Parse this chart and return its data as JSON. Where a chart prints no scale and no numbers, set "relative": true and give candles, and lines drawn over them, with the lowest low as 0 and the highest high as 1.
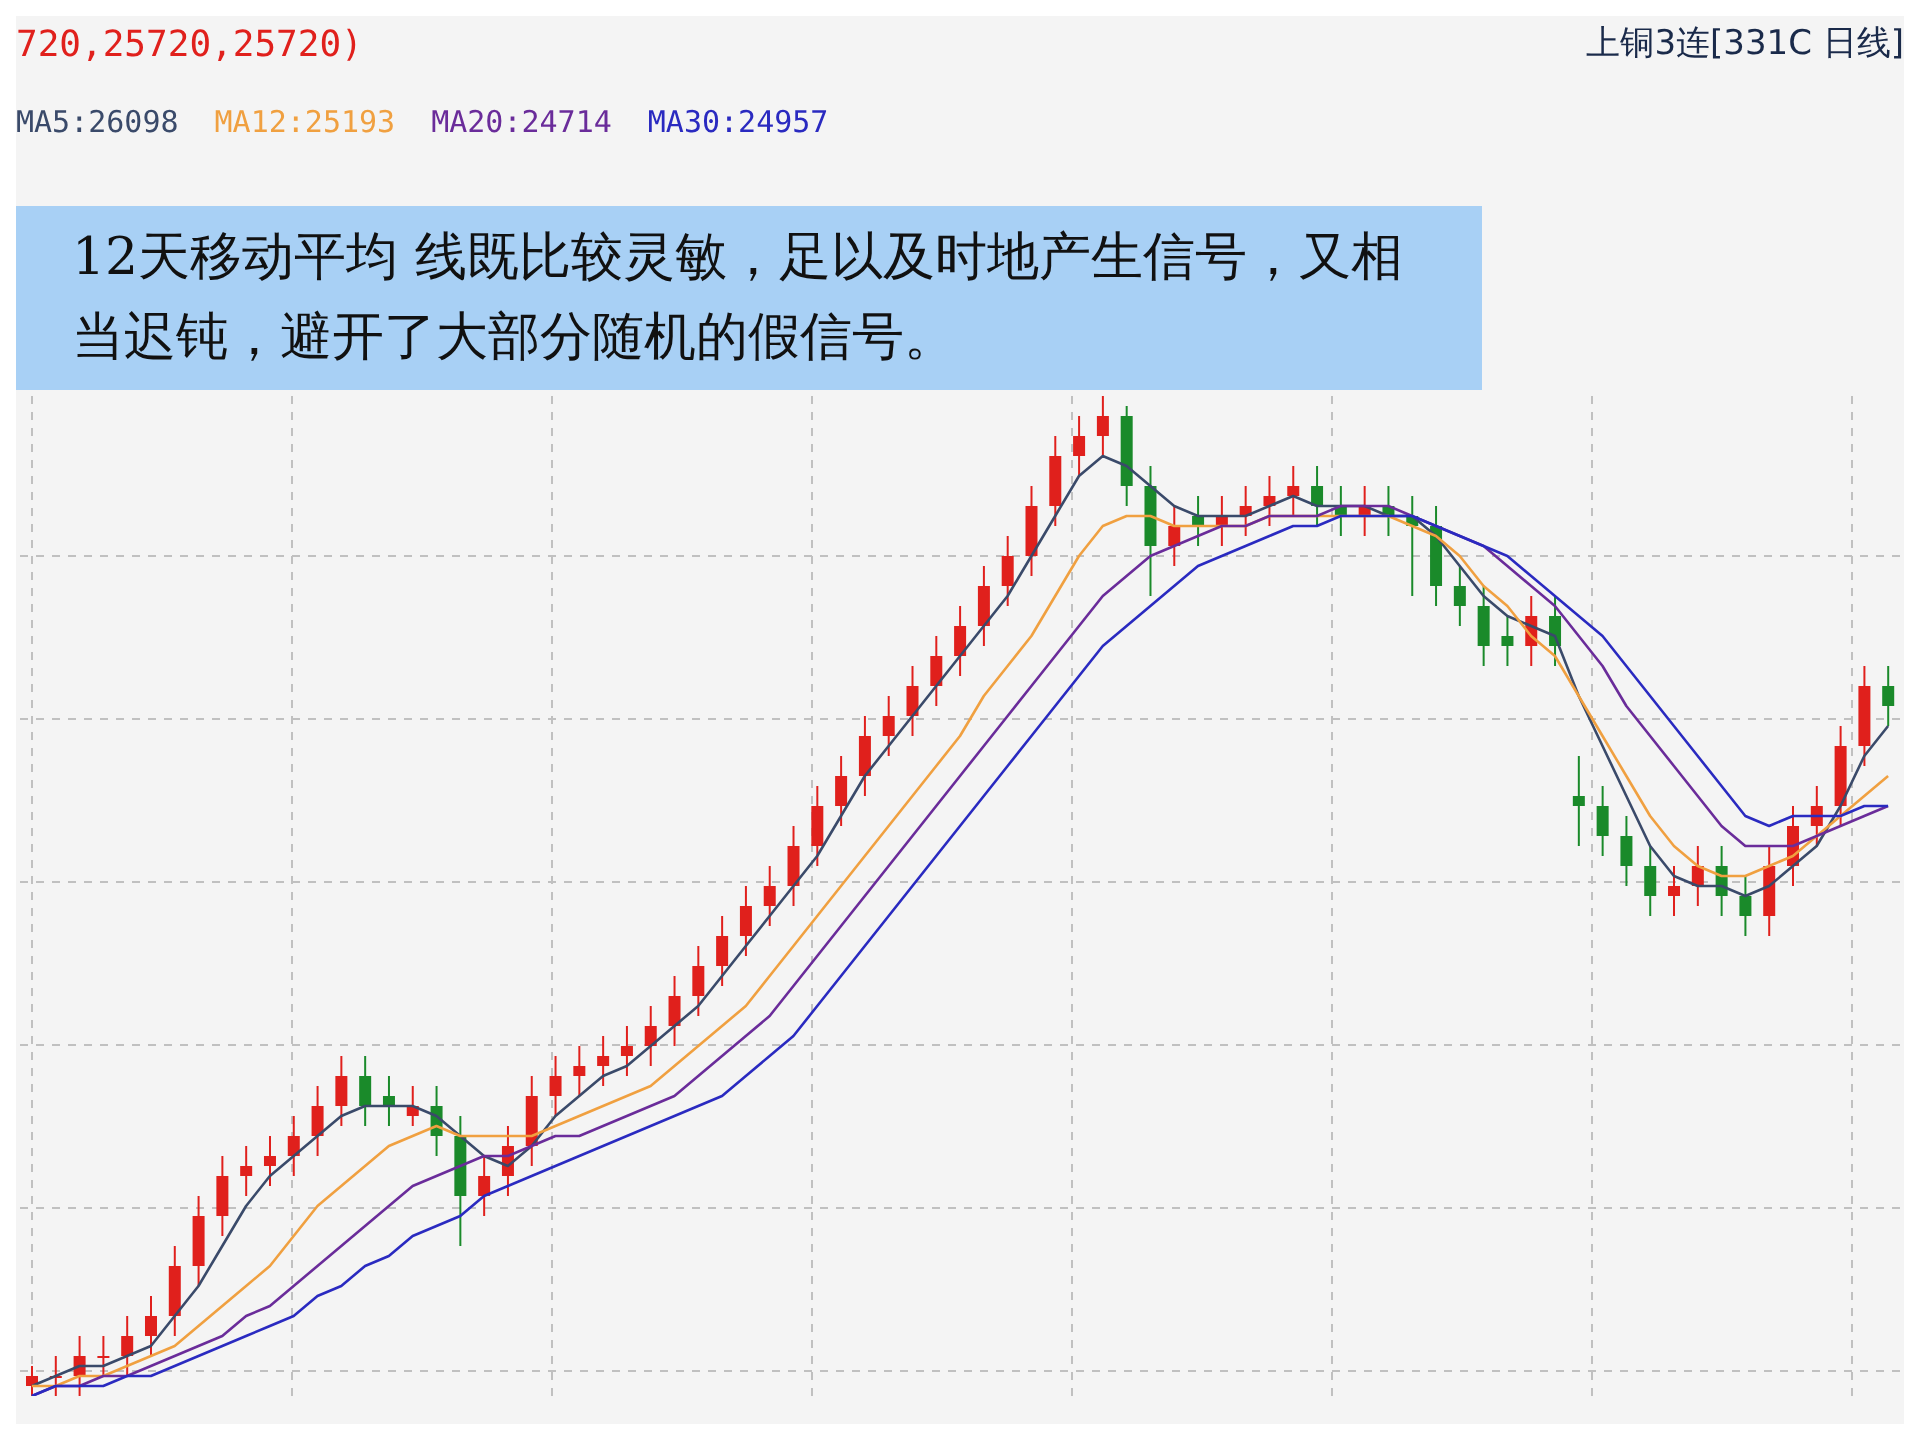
{
  "chart_data": {
    "type": "candlestick",
    "relative": true,
    "grid": true,
    "legend": "top left",
    "annotations": [
      "720,25720,25720)",
      "上铜3连[331C 日线]",
      "12天移动平均 线既比较灵敏，足以及时地产生信号，又相当迟钝，避开了大部分随机的假信号。"
    ],
    "categories": [
      null,
      null,
      null,
      null,
      null,
      null,
      null,
      null,
      null,
      null,
      null,
      null,
      null,
      null,
      null,
      null,
      null,
      null,
      null,
      null,
      null,
      null,
      null,
      null,
      null,
      null,
      null,
      null,
      null,
      null,
      null,
      null,
      null,
      null,
      null,
      null,
      null,
      null,
      null,
      null,
      null,
      null,
      null,
      null,
      null,
      null,
      null,
      null,
      null,
      null,
      null,
      null,
      null,
      null,
      null,
      null,
      null,
      null,
      null,
      null,
      null,
      null,
      null,
      null,
      null,
      null,
      null,
      null,
      null,
      null,
      null,
      null,
      null,
      null,
      null,
      null,
      null,
      null,
      null
    ],
    "ohlc": [
      [
        0.01,
        0.03,
        0,
        0.02
      ],
      [
        0.02,
        0.04,
        0,
        0.02
      ],
      [
        0.02,
        0.06,
        0,
        0.04
      ],
      [
        0.04,
        0.06,
        0.02,
        0.04
      ],
      [
        0.04,
        0.08,
        0.02,
        0.06
      ],
      [
        0.06,
        0.1,
        0.04,
        0.08
      ],
      [
        0.08,
        0.15,
        0.06,
        0.13
      ],
      [
        0.13,
        0.2,
        0.11,
        0.18
      ],
      [
        0.18,
        0.24,
        0.16,
        0.22
      ],
      [
        0.22,
        0.25,
        0.2,
        0.23
      ],
      [
        0.23,
        0.26,
        0.21,
        0.24
      ],
      [
        0.24,
        0.28,
        0.22,
        0.26
      ],
      [
        0.26,
        0.31,
        0.24,
        0.29
      ],
      [
        0.29,
        0.34,
        0.27,
        0.32
      ],
      [
        0.32,
        0.34,
        0.27,
        0.29
      ],
      [
        0.3,
        0.32,
        0.27,
        0.29
      ],
      [
        0.28,
        0.31,
        0.27,
        0.29
      ],
      [
        0.29,
        0.31,
        0.24,
        0.26
      ],
      [
        0.26,
        0.28,
        0.15,
        0.2
      ],
      [
        0.2,
        0.24,
        0.18,
        0.22
      ],
      [
        0.22,
        0.27,
        0.2,
        0.25
      ],
      [
        0.25,
        0.32,
        0.23,
        0.3
      ],
      [
        0.3,
        0.34,
        0.28,
        0.32
      ],
      [
        0.32,
        0.35,
        0.3,
        0.33
      ],
      [
        0.33,
        0.36,
        0.31,
        0.34
      ],
      [
        0.34,
        0.37,
        0.32,
        0.35
      ],
      [
        0.35,
        0.39,
        0.33,
        0.37
      ],
      [
        0.37,
        0.42,
        0.35,
        0.4
      ],
      [
        0.4,
        0.45,
        0.38,
        0.43
      ],
      [
        0.43,
        0.48,
        0.41,
        0.46
      ],
      [
        0.46,
        0.51,
        0.44,
        0.49
      ],
      [
        0.49,
        0.53,
        0.47,
        0.51
      ],
      [
        0.51,
        0.57,
        0.49,
        0.55
      ],
      [
        0.55,
        0.61,
        0.53,
        0.59
      ],
      [
        0.59,
        0.64,
        0.57,
        0.62
      ],
      [
        0.62,
        0.68,
        0.6,
        0.66
      ],
      [
        0.66,
        0.7,
        0.64,
        0.68
      ],
      [
        0.68,
        0.73,
        0.66,
        0.71
      ],
      [
        0.71,
        0.76,
        0.69,
        0.74
      ],
      [
        0.74,
        0.79,
        0.72,
        0.77
      ],
      [
        0.77,
        0.83,
        0.75,
        0.81
      ],
      [
        0.81,
        0.86,
        0.79,
        0.84
      ],
      [
        0.84,
        0.91,
        0.82,
        0.89
      ],
      [
        0.89,
        0.96,
        0.87,
        0.94
      ],
      [
        0.94,
        0.98,
        0.92,
        0.96
      ],
      [
        0.96,
        1,
        0.94,
        0.98
      ],
      [
        0.98,
        0.99,
        0.89,
        0.91
      ],
      [
        0.91,
        0.93,
        0.8,
        0.85
      ],
      [
        0.85,
        0.89,
        0.83,
        0.87
      ],
      [
        0.88,
        0.9,
        0.85,
        0.87
      ],
      [
        0.87,
        0.9,
        0.85,
        0.88
      ],
      [
        0.88,
        0.91,
        0.86,
        0.89
      ],
      [
        0.89,
        0.92,
        0.87,
        0.9
      ],
      [
        0.9,
        0.93,
        0.88,
        0.91
      ],
      [
        0.91,
        0.93,
        0.87,
        0.89
      ],
      [
        0.89,
        0.91,
        0.86,
        0.88
      ],
      [
        0.88,
        0.91,
        0.86,
        0.89
      ],
      [
        0.89,
        0.91,
        0.86,
        0.88
      ],
      [
        0.88,
        0.9,
        0.8,
        0.87
      ],
      [
        0.87,
        0.89,
        0.79,
        0.81
      ],
      [
        0.81,
        0.83,
        0.77,
        0.79
      ],
      [
        0.79,
        0.81,
        0.73,
        0.75
      ],
      [
        0.76,
        0.78,
        0.73,
        0.75
      ],
      [
        0.75,
        0.8,
        0.73,
        0.78
      ],
      [
        0.78,
        0.8,
        0.73,
        0.75
      ],
      [
        0.6,
        0.64,
        0.55,
        0.59
      ],
      [
        0.59,
        0.61,
        0.54,
        0.56
      ],
      [
        0.56,
        0.58,
        0.51,
        0.53
      ],
      [
        0.53,
        0.55,
        0.48,
        0.5
      ],
      [
        0.5,
        0.53,
        0.48,
        0.51
      ],
      [
        0.51,
        0.55,
        0.49,
        0.53
      ],
      [
        0.53,
        0.55,
        0.48,
        0.5
      ],
      [
        0.5,
        0.52,
        0.46,
        0.48
      ],
      [
        0.48,
        0.55,
        0.46,
        0.53
      ],
      [
        0.53,
        0.59,
        0.51,
        0.57
      ],
      [
        0.57,
        0.61,
        0.55,
        0.59
      ],
      [
        0.59,
        0.67,
        0.57,
        0.65
      ],
      [
        0.65,
        0.73,
        0.63,
        0.71
      ],
      [
        0.71,
        0.73,
        0.67,
        0.69
      ]
    ],
    "colors": [
      "#e0201c",
      "#e0201c",
      "#e0201c",
      "#e0201c",
      "#e0201c",
      "#e0201c",
      "#e0201c",
      "#e0201c",
      "#e0201c",
      "#e0201c",
      "#e0201c",
      "#e0201c",
      "#e0201c",
      "#e0201c",
      "#1a8a2a",
      "#1a8a2a",
      "#e0201c",
      "#1a8a2a",
      "#1a8a2a",
      "#e0201c",
      "#e0201c",
      "#e0201c",
      "#e0201c",
      "#e0201c",
      "#e0201c",
      "#e0201c",
      "#e0201c",
      "#e0201c",
      "#e0201c",
      "#e0201c",
      "#e0201c",
      "#e0201c",
      "#e0201c",
      "#e0201c",
      "#e0201c",
      "#e0201c",
      "#e0201c",
      "#e0201c",
      "#e0201c",
      "#e0201c",
      "#e0201c",
      "#e0201c",
      "#e0201c",
      "#e0201c",
      "#e0201c",
      "#e0201c",
      "#1a8a2a",
      "#1a8a2a",
      "#e0201c",
      "#1a8a2a",
      "#e0201c",
      "#e0201c",
      "#e0201c",
      "#e0201c",
      "#1a8a2a",
      "#1a8a2a",
      "#e0201c",
      "#1a8a2a",
      "#1a8a2a",
      "#1a8a2a",
      "#1a8a2a",
      "#1a8a2a",
      "#1a8a2a",
      "#e0201c",
      "#1a8a2a",
      "#1a8a2a",
      "#1a8a2a",
      "#1a8a2a",
      "#1a8a2a",
      "#e0201c",
      "#e0201c",
      "#1a8a2a",
      "#1a8a2a",
      "#e0201c",
      "#e0201c",
      "#e0201c",
      "#e0201c",
      "#e0201c",
      "#1a8a2a"
    ],
    "series": [
      {
        "name": "MA5:26098",
        "type": "line",
        "color": "#3a4a6a",
        "values": [
          0.01,
          0.02,
          0.03,
          0.03,
          0.04,
          0.05,
          0.08,
          0.11,
          0.15,
          0.19,
          0.22,
          0.24,
          0.26,
          0.28,
          0.29,
          0.29,
          0.29,
          0.28,
          0.26,
          0.24,
          0.23,
          0.25,
          0.28,
          0.3,
          0.32,
          0.33,
          0.35,
          0.37,
          0.39,
          0.42,
          0.45,
          0.48,
          0.51,
          0.54,
          0.58,
          0.62,
          0.65,
          0.68,
          0.71,
          0.74,
          0.77,
          0.8,
          0.84,
          0.88,
          0.92,
          0.94,
          0.93,
          0.91,
          0.89,
          0.88,
          0.88,
          0.88,
          0.89,
          0.9,
          0.89,
          0.89,
          0.89,
          0.88,
          0.88,
          0.86,
          0.83,
          0.8,
          0.78,
          0.77,
          0.76,
          0.7,
          0.65,
          0.6,
          0.55,
          0.52,
          0.51,
          0.51,
          0.5,
          0.51,
          0.53,
          0.55,
          0.59,
          0.64,
          0.67
        ]
      },
      {
        "name": "MA12:25193",
        "type": "line",
        "color": "#f0a040",
        "values": [
          0.01,
          0.01,
          0.02,
          0.02,
          0.03,
          0.04,
          0.05,
          0.07,
          0.09,
          0.11,
          0.13,
          0.16,
          0.19,
          0.21,
          0.23,
          0.25,
          0.26,
          0.27,
          0.26,
          0.26,
          0.26,
          0.26,
          0.27,
          0.28,
          0.29,
          0.3,
          0.31,
          0.33,
          0.35,
          0.37,
          0.39,
          0.42,
          0.45,
          0.48,
          0.51,
          0.54,
          0.57,
          0.6,
          0.63,
          0.66,
          0.7,
          0.73,
          0.76,
          0.8,
          0.84,
          0.87,
          0.88,
          0.88,
          0.87,
          0.87,
          0.87,
          0.87,
          0.88,
          0.88,
          0.88,
          0.88,
          0.88,
          0.88,
          0.87,
          0.86,
          0.84,
          0.81,
          0.79,
          0.76,
          0.74,
          0.7,
          0.66,
          0.62,
          0.58,
          0.55,
          0.53,
          0.52,
          0.52,
          0.53,
          0.54,
          0.56,
          0.58,
          0.6,
          0.62
        ]
      },
      {
        "name": "MA20:24714",
        "type": "line",
        "color": "#6a2c9a",
        "values": [
          0.0,
          0.01,
          0.01,
          0.02,
          0.02,
          0.03,
          0.04,
          0.05,
          0.06,
          0.08,
          0.09,
          0.11,
          0.13,
          0.15,
          0.17,
          0.19,
          0.21,
          0.22,
          0.23,
          0.24,
          0.24,
          0.25,
          0.26,
          0.26,
          0.27,
          0.28,
          0.29,
          0.3,
          0.32,
          0.34,
          0.36,
          0.38,
          0.41,
          0.44,
          0.47,
          0.5,
          0.53,
          0.56,
          0.59,
          0.62,
          0.65,
          0.68,
          0.71,
          0.74,
          0.77,
          0.8,
          0.82,
          0.84,
          0.85,
          0.86,
          0.87,
          0.87,
          0.88,
          0.88,
          0.88,
          0.89,
          0.89,
          0.89,
          0.88,
          0.87,
          0.86,
          0.85,
          0.83,
          0.81,
          0.79,
          0.76,
          0.73,
          0.69,
          0.66,
          0.63,
          0.6,
          0.57,
          0.55,
          0.55,
          0.55,
          0.56,
          0.57,
          0.58,
          0.59
        ]
      },
      {
        "name": "MA30:24957",
        "type": "line",
        "color": "#2a2ac0",
        "values": [
          0.0,
          0.01,
          0.01,
          0.01,
          0.02,
          0.02,
          0.03,
          0.04,
          0.05,
          0.06,
          0.07,
          0.08,
          0.1,
          0.11,
          0.13,
          0.14,
          0.16,
          0.17,
          0.18,
          0.2,
          0.21,
          0.22,
          0.23,
          0.24,
          0.25,
          0.26,
          0.27,
          0.28,
          0.29,
          0.3,
          0.32,
          0.34,
          0.36,
          0.39,
          0.42,
          0.45,
          0.48,
          0.51,
          0.54,
          0.57,
          0.6,
          0.63,
          0.66,
          0.69,
          0.72,
          0.75,
          0.77,
          0.79,
          0.81,
          0.83,
          0.84,
          0.85,
          0.86,
          0.87,
          0.87,
          0.88,
          0.88,
          0.88,
          0.88,
          0.87,
          0.86,
          0.85,
          0.84,
          0.82,
          0.8,
          0.78,
          0.76,
          0.73,
          0.7,
          0.67,
          0.64,
          0.61,
          0.58,
          0.57,
          0.58,
          0.58,
          0.58,
          0.59,
          0.59
        ]
      }
    ]
  }
}
